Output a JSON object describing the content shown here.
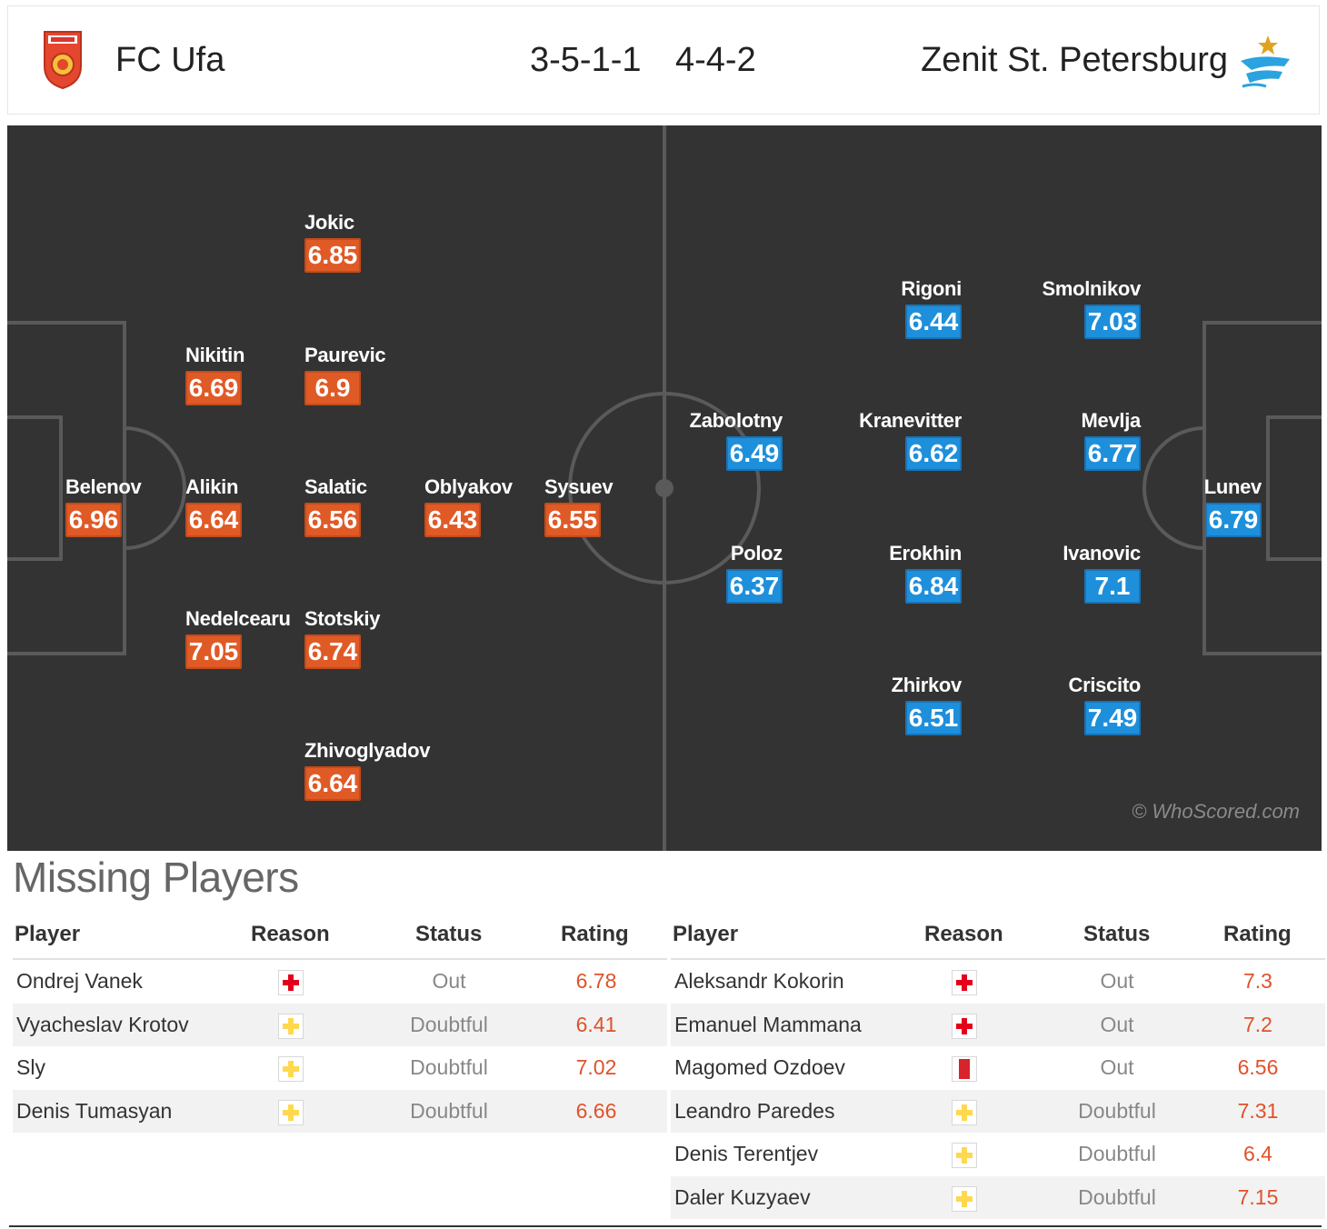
{
  "header": {
    "home_team": "FC Ufa",
    "home_formation": "3-5-1-1",
    "away_formation": "4-4-2",
    "away_team": "Zenit St. Petersburg",
    "home_crest_icon": "ufa-crest-icon",
    "away_crest_icon": "zenit-crest-icon"
  },
  "pitch": {
    "watermark": "© WhoScored.com",
    "home_players": [
      {
        "name": "Jokic",
        "rating": "6.85"
      },
      {
        "name": "Nikitin",
        "rating": "6.69"
      },
      {
        "name": "Paurevic",
        "rating": "6.9"
      },
      {
        "name": "Belenov",
        "rating": "6.96"
      },
      {
        "name": "Alikin",
        "rating": "6.64"
      },
      {
        "name": "Salatic",
        "rating": "6.56"
      },
      {
        "name": "Oblyakov",
        "rating": "6.43"
      },
      {
        "name": "Sysuev",
        "rating": "6.55"
      },
      {
        "name": "Nedelcearu",
        "rating": "7.05"
      },
      {
        "name": "Stotskiy",
        "rating": "6.74"
      },
      {
        "name": "Zhivoglyadov",
        "rating": "6.64"
      }
    ],
    "away_players": [
      {
        "name": "Rigoni",
        "rating": "6.44"
      },
      {
        "name": "Smolnikov",
        "rating": "7.03"
      },
      {
        "name": "Zabolotny",
        "rating": "6.49"
      },
      {
        "name": "Kranevitter",
        "rating": "6.62"
      },
      {
        "name": "Mevlja",
        "rating": "6.77"
      },
      {
        "name": "Lunev",
        "rating": "6.79"
      },
      {
        "name": "Poloz",
        "rating": "6.37"
      },
      {
        "name": "Erokhin",
        "rating": "6.84"
      },
      {
        "name": "Ivanovic",
        "rating": "7.1"
      },
      {
        "name": "Zhirkov",
        "rating": "6.51"
      },
      {
        "name": "Criscito",
        "rating": "7.49"
      }
    ]
  },
  "missing": {
    "title": "Missing Players",
    "columns": {
      "player": "Player",
      "reason": "Reason",
      "status": "Status",
      "rating": "Rating"
    },
    "home": [
      {
        "player": "Ondrej Vanek",
        "reason": "injury",
        "status": "Out",
        "rating": "6.78"
      },
      {
        "player": "Vyacheslav Krotov",
        "reason": "doubtful",
        "status": "Doubtful",
        "rating": "6.41"
      },
      {
        "player": "Sly",
        "reason": "doubtful",
        "status": "Doubtful",
        "rating": "7.02"
      },
      {
        "player": "Denis Tumasyan",
        "reason": "doubtful",
        "status": "Doubtful",
        "rating": "6.66"
      }
    ],
    "away": [
      {
        "player": "Aleksandr Kokorin",
        "reason": "injury",
        "status": "Out",
        "rating": "7.3"
      },
      {
        "player": "Emanuel Mammana",
        "reason": "injury",
        "status": "Out",
        "rating": "7.2"
      },
      {
        "player": "Magomed Ozdoev",
        "reason": "red-card",
        "status": "Out",
        "rating": "6.56"
      },
      {
        "player": "Leandro Paredes",
        "reason": "doubtful",
        "status": "Doubtful",
        "rating": "7.31"
      },
      {
        "player": "Denis Terentjev",
        "reason": "doubtful",
        "status": "Doubtful",
        "rating": "6.4"
      },
      {
        "player": "Daler Kuzyaev",
        "reason": "doubtful",
        "status": "Doubtful",
        "rating": "7.15"
      }
    ],
    "colors": {
      "injury": "#e3001b",
      "doubtful": "#ffd84d",
      "red-card": "#d8232a"
    }
  }
}
